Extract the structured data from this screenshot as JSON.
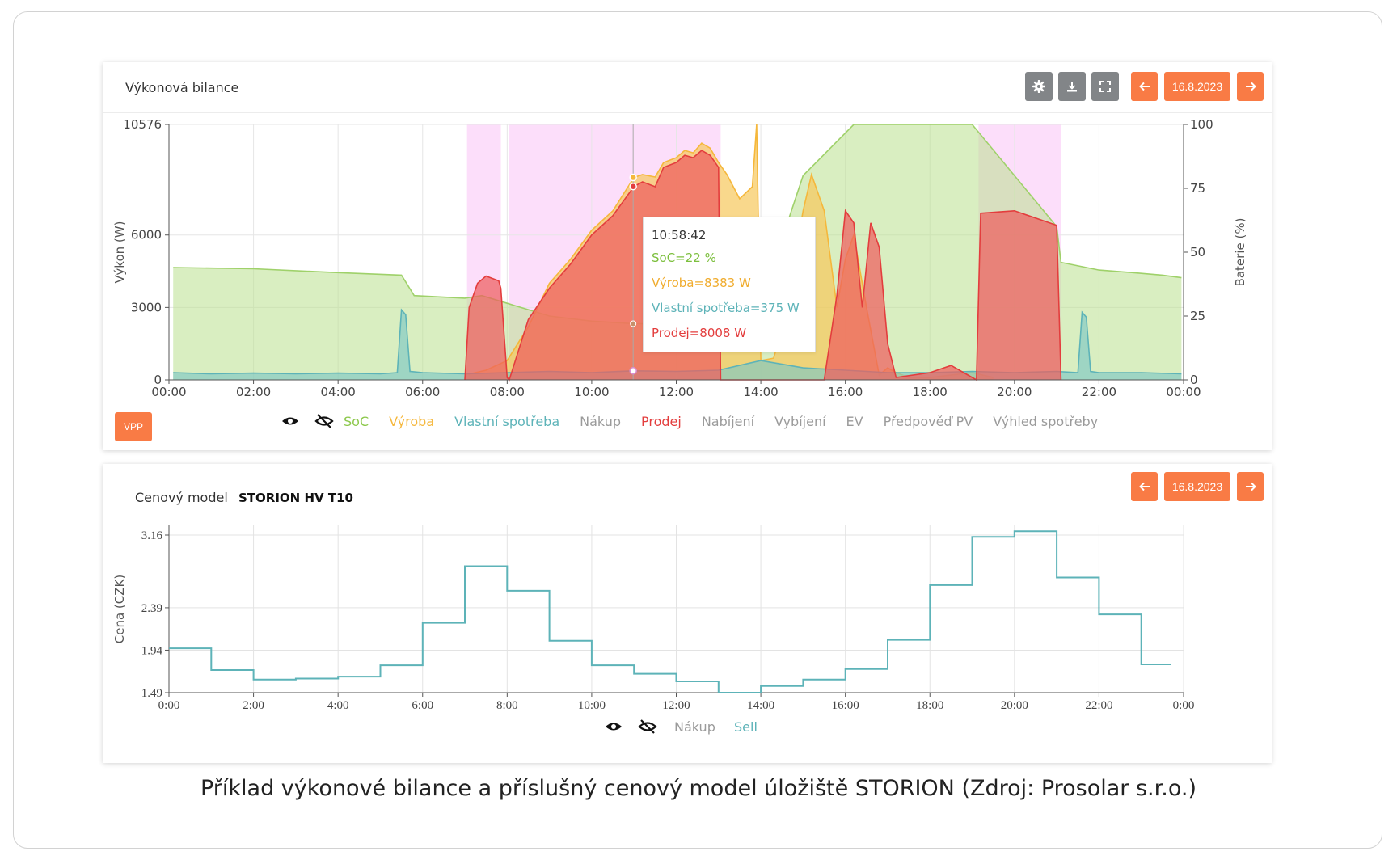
{
  "caption": "Příklad výkonové bilance a příslušný cenový model úložiště STORION (Zdroj: Prosolar s.r.o.)",
  "colors": {
    "accent": "#f97b45",
    "soc": "#8cc84b",
    "vyroba": "#f5b73b",
    "vlastni": "#5db3b8",
    "prodej": "#e33d3d",
    "inactive": "#9b9b9b",
    "vpp_band": "#fbd3f8"
  },
  "power_panel": {
    "title": "Výkonová bilance",
    "date": "16.8.2023",
    "prev_icon": "arrow-left-icon",
    "next_icon": "arrow-right-icon",
    "toolbar_icons": [
      "gear-icon",
      "download-icon",
      "fullscreen-icon"
    ],
    "vpp_label": "VPP",
    "legend": {
      "show_icon": "eye-icon",
      "hide_icon": "eye-slash-icon",
      "items": [
        {
          "label": "SoC",
          "active": true,
          "color": "#8cc84b"
        },
        {
          "label": "Výroba",
          "active": true,
          "color": "#f5b73b"
        },
        {
          "label": "Vlastní spotřeba",
          "active": true,
          "color": "#5db3b8"
        },
        {
          "label": "Nákup",
          "active": false,
          "color": "#9b9b9b"
        },
        {
          "label": "Prodej",
          "active": true,
          "color": "#e33d3d"
        },
        {
          "label": "Nabíjení",
          "active": false,
          "color": "#9b9b9b"
        },
        {
          "label": "Vybíjení",
          "active": false,
          "color": "#9b9b9b"
        },
        {
          "label": "EV",
          "active": false,
          "color": "#9b9b9b"
        },
        {
          "label": "Předpověď PV",
          "active": false,
          "color": "#9b9b9b"
        },
        {
          "label": "Výhled spotřeby",
          "active": false,
          "color": "#9b9b9b"
        }
      ]
    },
    "tooltip": {
      "time": "10:58:42",
      "soc": "SoC=22 %",
      "vyroba": "Výroba=8383 W",
      "vlastni": "Vlastní spotřeba=375 W",
      "prodej": "Prodej=8008 W"
    }
  },
  "price_panel": {
    "title": "Cenový model",
    "model_name": "STORION HV T10",
    "date": "16.8.2023",
    "legend": {
      "items": [
        {
          "label": "Nákup",
          "active": false,
          "color": "#9b9b9b"
        },
        {
          "label": "Sell",
          "active": true,
          "color": "#5db3b8"
        }
      ]
    }
  },
  "chart_data": [
    {
      "type": "area",
      "title": "Výkonová bilance",
      "xlabel": "",
      "ylabel": "Výkon (W)",
      "y2label": "Baterie (%)",
      "x_unit": "hours",
      "xlim": [
        0,
        24
      ],
      "ylim": [
        0,
        10576
      ],
      "y2lim": [
        0,
        100
      ],
      "xticks": [
        "00:00",
        "02:00",
        "04:00",
        "06:00",
        "08:00",
        "10:00",
        "12:00",
        "14:00",
        "16:00",
        "18:00",
        "20:00",
        "22:00",
        "00:00"
      ],
      "yticks": [
        "0",
        "3000",
        "6000",
        "10576"
      ],
      "y2ticks": [
        "0",
        "25",
        "50",
        "75",
        "100"
      ],
      "vpp_windows": [
        [
          7.05,
          7.85
        ],
        [
          8.05,
          13.05
        ],
        [
          19.15,
          21.1
        ]
      ],
      "series": [
        {
          "name": "SoC",
          "axis": "right",
          "color": "#8cc84b",
          "x": [
            0.1,
            2,
            4,
            5.5,
            5.8,
            7,
            7.4,
            8,
            9,
            10,
            11,
            12,
            13,
            13.4,
            14,
            14.5,
            15,
            15.6,
            16.2,
            19,
            19.5,
            20,
            21,
            21.1,
            22,
            22.8,
            23.5,
            23.95
          ],
          "y": [
            44,
            43.5,
            42,
            41,
            33,
            32,
            33,
            30,
            25,
            23,
            22,
            22,
            22,
            24,
            36,
            55,
            80,
            90,
            100,
            100,
            90,
            80,
            60,
            46,
            43,
            42,
            41,
            40
          ]
        },
        {
          "name": "Výroba",
          "axis": "left",
          "color": "#f5b73b",
          "x": [
            7,
            7.5,
            8,
            8.5,
            9,
            9.5,
            10,
            10.5,
            11,
            11.2,
            11.5,
            11.7,
            12,
            12.2,
            12.4,
            12.6,
            12.8,
            13,
            13.2,
            13.5,
            13.8,
            13.9,
            14,
            14.3,
            14.5,
            14.8,
            15,
            15.2,
            15.5,
            15.8,
            16,
            16.2,
            16.5,
            16.8,
            17,
            17.2,
            17.5,
            18,
            18.5,
            19,
            19.5
          ],
          "y": [
            200,
            400,
            800,
            2200,
            4000,
            5000,
            6200,
            7000,
            8383,
            8500,
            8400,
            9000,
            9200,
            9500,
            9400,
            9800,
            9600,
            9000,
            8500,
            7500,
            8000,
            10576,
            800,
            900,
            2000,
            5000,
            7000,
            8500,
            7000,
            3000,
            5000,
            6000,
            3000,
            200,
            500,
            300,
            100,
            100,
            200,
            300,
            100
          ]
        },
        {
          "name": "Vlastní spotřeba",
          "axis": "left",
          "color": "#5db3b8",
          "x": [
            0.1,
            1,
            2,
            3,
            4,
            5,
            5.4,
            5.5,
            5.6,
            5.7,
            6,
            7,
            8,
            9,
            10,
            11,
            12,
            13,
            14,
            15,
            16,
            17,
            18,
            19,
            20,
            21,
            21.5,
            21.6,
            21.7,
            21.8,
            22,
            23,
            23.95
          ],
          "y": [
            300,
            250,
            280,
            250,
            280,
            250,
            300,
            2900,
            2700,
            350,
            300,
            250,
            300,
            350,
            300,
            375,
            350,
            400,
            800,
            500,
            400,
            300,
            300,
            350,
            300,
            350,
            300,
            2800,
            2600,
            350,
            300,
            300,
            250
          ]
        },
        {
          "name": "Prodej",
          "axis": "left",
          "color": "#e33d3d",
          "x": [
            7,
            7.1,
            7.3,
            7.5,
            7.8,
            7.85,
            8,
            8.05,
            8.5,
            9,
            9.5,
            10,
            10.5,
            11,
            11.2,
            11.5,
            11.7,
            12,
            12.2,
            12.4,
            12.6,
            12.8,
            13,
            13.05,
            13.2,
            15.5,
            15.8,
            16,
            16.2,
            16.4,
            16.6,
            16.8,
            17,
            17.2,
            18,
            18.5,
            19,
            19.1,
            19.2,
            20,
            21,
            21.1
          ],
          "y": [
            0,
            3000,
            4000,
            4300,
            4100,
            3800,
            100,
            0,
            2500,
            3800,
            4800,
            6000,
            6800,
            8008,
            8200,
            8000,
            8800,
            9000,
            9300,
            9200,
            9500,
            9300,
            8800,
            0,
            0,
            0,
            3500,
            7000,
            6500,
            3000,
            6500,
            5500,
            1500,
            100,
            300,
            600,
            100,
            0,
            6900,
            7000,
            6400,
            0
          ]
        }
      ]
    },
    {
      "type": "line",
      "title": "Cenový model STORION HV T10",
      "xlabel": "",
      "ylabel": "Cena (CZK)",
      "x_unit": "hours",
      "xlim": [
        0,
        24
      ],
      "ylim": [
        1.49,
        3.16
      ],
      "xticks": [
        "0:00",
        "2:00",
        "4:00",
        "6:00",
        "8:00",
        "10:00",
        "12:00",
        "14:00",
        "16:00",
        "18:00",
        "20:00",
        "22:00",
        "0:00"
      ],
      "yticks": [
        "1.49",
        "1.94",
        "2.39",
        "3.16"
      ],
      "step": true,
      "series": [
        {
          "name": "Sell",
          "color": "#5db3b8",
          "x": [
            0,
            1,
            2,
            3,
            4,
            5,
            6,
            7,
            8,
            9,
            10,
            11,
            12,
            13,
            14,
            15,
            16,
            17,
            18,
            19,
            20,
            21,
            22,
            23
          ],
          "values": [
            1.96,
            1.73,
            1.63,
            1.64,
            1.66,
            1.78,
            2.23,
            2.83,
            2.57,
            2.04,
            1.78,
            1.69,
            1.61,
            1.49,
            1.56,
            1.63,
            1.74,
            2.05,
            2.63,
            3.14,
            3.2,
            2.71,
            2.32,
            1.79
          ]
        }
      ]
    }
  ]
}
